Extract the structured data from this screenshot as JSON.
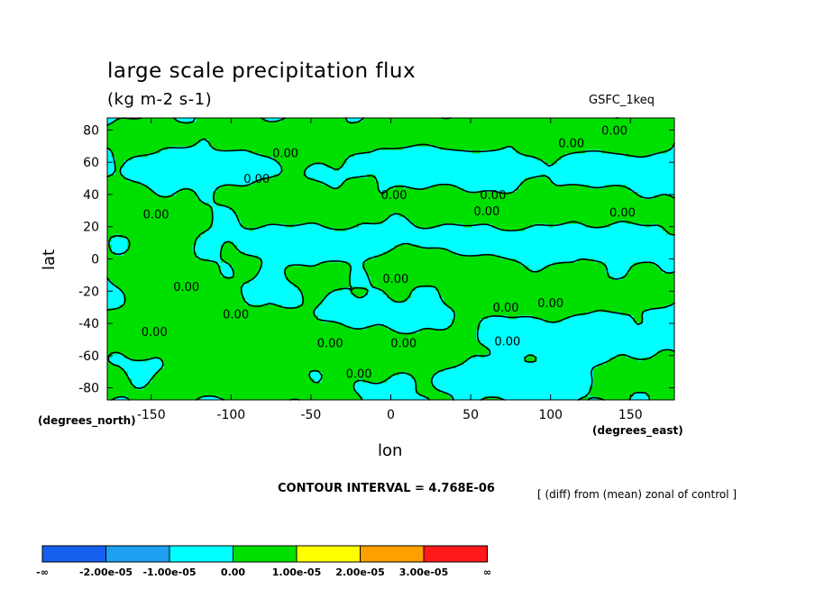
{
  "chart_data": {
    "type": "heatmap",
    "title": "large scale precipitation flux",
    "subtitle": "(kg m-2 s-1)",
    "run_label": "GSFC_1keq",
    "xlabel": "lon",
    "ylabel": "lat",
    "x_units": "(degrees_east)",
    "y_units": "(degrees_north)",
    "xlim": [
      -177.5,
      177.5
    ],
    "ylim": [
      -87.5,
      87.5
    ],
    "x_ticks": [
      -150,
      -100,
      -50,
      0,
      50,
      100,
      150
    ],
    "y_ticks": [
      80,
      60,
      40,
      20,
      0,
      -20,
      -40,
      -60,
      -80
    ],
    "contour_interval": "CONTOUR INTERVAL = 4.768E-06",
    "note": "[ (diff) from (mean) zonal of control ]",
    "contour_labels": [
      {
        "text": "0.00",
        "lon": -66,
        "lat": 66
      },
      {
        "text": "0.00",
        "lon": 113,
        "lat": 72
      },
      {
        "text": "0.00",
        "lon": 140,
        "lat": 80
      },
      {
        "text": "0.00",
        "lon": 2,
        "lat": 40
      },
      {
        "text": "0.00",
        "lon": 64,
        "lat": 40
      },
      {
        "text": "0.00",
        "lon": 60,
        "lat": 30
      },
      {
        "text": "0.00",
        "lon": -84,
        "lat": 50
      },
      {
        "text": "0.00",
        "lon": -147,
        "lat": 28
      },
      {
        "text": "0.00",
        "lon": 145,
        "lat": 29
      },
      {
        "text": "0.00",
        "lon": 3,
        "lat": -12
      },
      {
        "text": "0.00",
        "lon": 72,
        "lat": -30
      },
      {
        "text": "0.00",
        "lon": 100,
        "lat": -27
      },
      {
        "text": "0.00",
        "lon": -128,
        "lat": -17
      },
      {
        "text": "0.00",
        "lon": -97,
        "lat": -34
      },
      {
        "text": "0.00",
        "lon": -148,
        "lat": -45
      },
      {
        "text": "0.00",
        "lon": -38,
        "lat": -52
      },
      {
        "text": "0.00",
        "lon": 8,
        "lat": -52
      },
      {
        "text": "0.00",
        "lon": 73,
        "lat": -51
      },
      {
        "text": "0.00",
        "lon": -20,
        "lat": -71
      }
    ],
    "legend": {
      "colors": [
        "#1560ee",
        "#1ea0f0",
        "#00ffff",
        "#00e000",
        "#ffff00",
        "#ffa000",
        "#ff1a1a"
      ],
      "labels": [
        "-∞",
        "-2.00e-05",
        "-1.00e-05",
        "0.00",
        "1.00e-05",
        "2.00e-05",
        "3.00e-05",
        "∞"
      ]
    },
    "field": {
      "positive_color": "#00e000",
      "negative_color": "#00ffff",
      "contour_color": "#000000",
      "blobs": [
        {
          "lon": -145,
          "lat": 78,
          "rlon": 25,
          "rlat": 8,
          "w": 1
        },
        {
          "lon": -60,
          "lat": 72,
          "rlon": 40,
          "rlat": 12,
          "w": 1
        },
        {
          "lon": 20,
          "lat": 78,
          "rlon": 40,
          "rlat": 10,
          "w": 1
        },
        {
          "lon": 110,
          "lat": 75,
          "rlon": 45,
          "rlat": 12,
          "w": 1
        },
        {
          "lon": 160,
          "lat": 80,
          "rlon": 20,
          "rlat": 8,
          "w": 1
        },
        {
          "lon": -120,
          "lat": 55,
          "rlon": 40,
          "rlat": 10,
          "w": -1
        },
        {
          "lon": 30,
          "lat": 58,
          "rlon": 55,
          "rlat": 12,
          "w": -1
        },
        {
          "lon": 140,
          "lat": 55,
          "rlon": 35,
          "rlat": 10,
          "w": -1
        },
        {
          "lon": -160,
          "lat": 30,
          "rlon": 22,
          "rlat": 18,
          "w": 1
        },
        {
          "lon": -60,
          "lat": 35,
          "rlon": 45,
          "rlat": 15,
          "w": 1
        },
        {
          "lon": 30,
          "lat": 32,
          "rlon": 30,
          "rlat": 10,
          "w": 1
        },
        {
          "lon": 110,
          "lat": 32,
          "rlon": 55,
          "rlat": 12,
          "w": 1
        },
        {
          "lon": -40,
          "lat": 10,
          "rlon": 55,
          "rlat": 10,
          "w": -1
        },
        {
          "lon": 100,
          "lat": 10,
          "rlon": 70,
          "rlat": 10,
          "w": -1
        },
        {
          "lon": 10,
          "lat": -2,
          "rlon": 40,
          "rlat": 10,
          "w": 1
        },
        {
          "lon": 70,
          "lat": -20,
          "rlon": 40,
          "rlat": 20,
          "w": 1
        },
        {
          "lon": 140,
          "lat": -22,
          "rlon": 35,
          "rlat": 8,
          "w": 1
        },
        {
          "lon": -140,
          "lat": -10,
          "rlon": 30,
          "rlat": 15,
          "w": 1
        },
        {
          "lon": -130,
          "lat": -45,
          "rlon": 40,
          "rlat": 15,
          "w": 1
        },
        {
          "lon": -40,
          "lat": -52,
          "rlon": 55,
          "rlat": 18,
          "w": 1
        },
        {
          "lon": 20,
          "lat": -58,
          "rlon": 35,
          "rlat": 10,
          "w": 1
        },
        {
          "lon": 110,
          "lat": -50,
          "rlon": 60,
          "rlat": 12,
          "w": -1
        },
        {
          "lon": 0,
          "lat": -35,
          "rlon": 40,
          "rlat": 10,
          "w": -1
        },
        {
          "lon": 80,
          "lat": -75,
          "rlon": 60,
          "rlat": 8,
          "w": -1
        },
        {
          "lon": -100,
          "lat": -78,
          "rlon": 50,
          "rlat": 8,
          "w": 1
        },
        {
          "lon": 160,
          "lat": -70,
          "rlon": 30,
          "rlat": 10,
          "w": 1
        }
      ]
    }
  }
}
